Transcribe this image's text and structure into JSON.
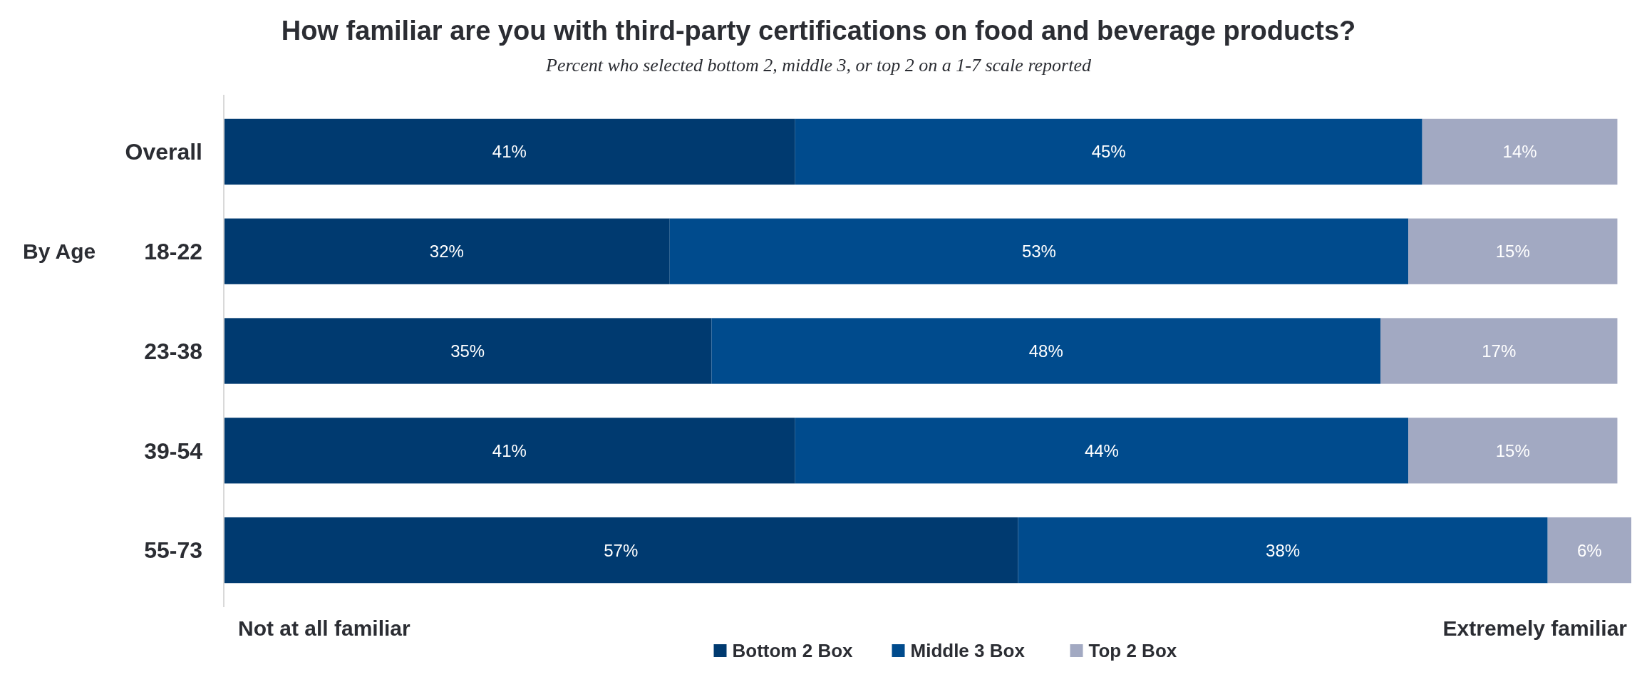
{
  "chart_data": {
    "type": "bar",
    "orientation": "horizontal",
    "stacked": true,
    "title": "How familiar are you with third-party certifications on food and beverage products?",
    "subtitle": "Percent who selected bottom 2, middle 3, or top 2 on a 1-7 scale reported",
    "categories": [
      "Overall",
      "18-22",
      "23-38",
      "39-54",
      "55-73"
    ],
    "series": [
      {
        "name": "Bottom 2 Box",
        "color": "#003a70",
        "values": [
          41,
          32,
          35,
          41,
          57
        ],
        "value_labels": [
          "41%",
          "32%",
          "35%",
          "41%",
          "57%"
        ]
      },
      {
        "name": "Middle 3 Box",
        "color": "#004b8d",
        "values": [
          45,
          53,
          48,
          44,
          38
        ],
        "value_labels": [
          "45%",
          "53%",
          "48%",
          "44%",
          "38%"
        ]
      },
      {
        "name": "Top 2 Box",
        "color": "#a2a9c2",
        "values": [
          14,
          15,
          17,
          15,
          6
        ],
        "value_labels": [
          "14%",
          "15%",
          "17%",
          "15%",
          "6%"
        ]
      }
    ],
    "tick_labels": "y",
    "legend": "bottom",
    "annotations": [
      "By Age",
      "Not at all familiar",
      "Extremely familiar"
    ]
  }
}
